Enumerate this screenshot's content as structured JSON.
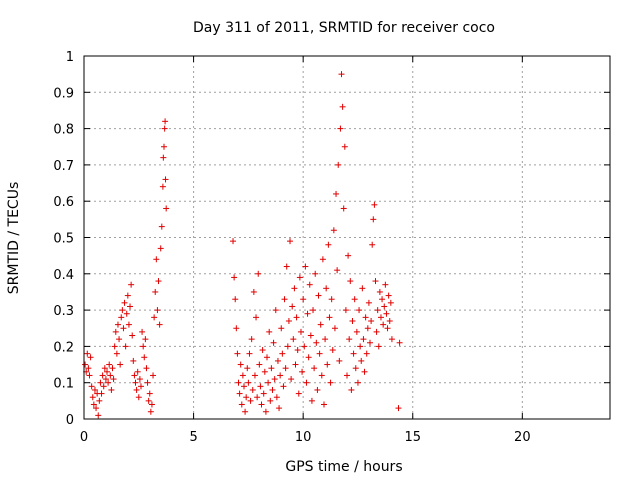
{
  "chart_data": {
    "type": "scatter",
    "title": "Day 311 of 2011, SRMTID for receiver coco",
    "xlabel": "GPS time / hours",
    "ylabel": "SRMTID / TECUs",
    "xlim": [
      0,
      24
    ],
    "ylim": [
      0,
      1
    ],
    "xticks": [
      0,
      5,
      10,
      15,
      20
    ],
    "yticks": [
      0,
      0.1,
      0.2,
      0.3,
      0.4,
      0.5,
      0.6,
      0.7,
      0.8,
      0.9,
      1
    ],
    "ytick_labels": [
      "0",
      "0.1",
      "0.2",
      "0.3",
      "0.4",
      "0.5",
      "0.6",
      "0.7",
      "0.8",
      "0.9",
      "1"
    ],
    "grid": true,
    "legend": "none",
    "marker": "plus",
    "color": "#e00000",
    "series": [
      {
        "points": [
          [
            0.05,
            0.15
          ],
          [
            0.1,
            0.13
          ],
          [
            0.15,
            0.18
          ],
          [
            0.2,
            0.14
          ],
          [
            0.25,
            0.12
          ],
          [
            0.3,
            0.17
          ],
          [
            0.35,
            0.09
          ],
          [
            0.4,
            0.06
          ],
          [
            0.45,
            0.04
          ],
          [
            0.5,
            0.08
          ],
          [
            0.55,
            0.03
          ],
          [
            0.6,
            0.07
          ],
          [
            0.65,
            0.01
          ],
          [
            0.7,
            0.05
          ],
          [
            0.75,
            0.1
          ],
          [
            0.8,
            0.07
          ],
          [
            0.85,
            0.12
          ],
          [
            0.9,
            0.09
          ],
          [
            0.95,
            0.14
          ],
          [
            1.0,
            0.11
          ],
          [
            1.05,
            0.13
          ],
          [
            1.1,
            0.1
          ],
          [
            1.15,
            0.15
          ],
          [
            1.2,
            0.12
          ],
          [
            1.25,
            0.08
          ],
          [
            1.3,
            0.14
          ],
          [
            1.35,
            0.11
          ],
          [
            1.4,
            0.2
          ],
          [
            1.45,
            0.24
          ],
          [
            1.5,
            0.18
          ],
          [
            1.55,
            0.26
          ],
          [
            1.6,
            0.22
          ],
          [
            1.65,
            0.15
          ],
          [
            1.7,
            0.28
          ],
          [
            1.75,
            0.3
          ],
          [
            1.8,
            0.25
          ],
          [
            1.85,
            0.32
          ],
          [
            1.9,
            0.2
          ],
          [
            1.95,
            0.29
          ],
          [
            2.0,
            0.34
          ],
          [
            2.05,
            0.26
          ],
          [
            2.1,
            0.31
          ],
          [
            2.15,
            0.37
          ],
          [
            2.2,
            0.23
          ],
          [
            2.25,
            0.16
          ],
          [
            2.3,
            0.12
          ],
          [
            2.35,
            0.1
          ],
          [
            2.4,
            0.08
          ],
          [
            2.45,
            0.13
          ],
          [
            2.5,
            0.06
          ],
          [
            2.55,
            0.11
          ],
          [
            2.6,
            0.09
          ],
          [
            2.65,
            0.24
          ],
          [
            2.7,
            0.2
          ],
          [
            2.75,
            0.17
          ],
          [
            2.8,
            0.22
          ],
          [
            2.85,
            0.14
          ],
          [
            2.9,
            0.1
          ],
          [
            2.95,
            0.05
          ],
          [
            3.0,
            0.07
          ],
          [
            3.05,
            0.02
          ],
          [
            3.1,
            0.04
          ],
          [
            3.15,
            0.12
          ],
          [
            3.2,
            0.28
          ],
          [
            3.25,
            0.35
          ],
          [
            3.3,
            0.44
          ],
          [
            3.35,
            0.3
          ],
          [
            3.4,
            0.38
          ],
          [
            3.45,
            0.26
          ],
          [
            3.5,
            0.47
          ],
          [
            3.55,
            0.53
          ],
          [
            3.6,
            0.64
          ],
          [
            3.62,
            0.72
          ],
          [
            3.65,
            0.75
          ],
          [
            3.68,
            0.8
          ],
          [
            3.7,
            0.82
          ],
          [
            3.72,
            0.66
          ],
          [
            3.75,
            0.58
          ],
          [
            6.8,
            0.49
          ],
          [
            6.85,
            0.39
          ],
          [
            6.9,
            0.33
          ],
          [
            6.95,
            0.25
          ],
          [
            7.0,
            0.18
          ],
          [
            7.05,
            0.1
          ],
          [
            7.1,
            0.07
          ],
          [
            7.15,
            0.15
          ],
          [
            7.2,
            0.04
          ],
          [
            7.25,
            0.12
          ],
          [
            7.3,
            0.09
          ],
          [
            7.35,
            0.02
          ],
          [
            7.4,
            0.06
          ],
          [
            7.45,
            0.14
          ],
          [
            7.5,
            0.1
          ],
          [
            7.55,
            0.18
          ],
          [
            7.6,
            0.05
          ],
          [
            7.65,
            0.22
          ],
          [
            7.7,
            0.08
          ],
          [
            7.75,
            0.35
          ],
          [
            7.8,
            0.12
          ],
          [
            7.85,
            0.28
          ],
          [
            7.9,
            0.06
          ],
          [
            7.95,
            0.4
          ],
          [
            8.0,
            0.15
          ],
          [
            8.05,
            0.09
          ],
          [
            8.1,
            0.04
          ],
          [
            8.15,
            0.19
          ],
          [
            8.2,
            0.07
          ],
          [
            8.25,
            0.13
          ],
          [
            8.3,
            0.02
          ],
          [
            8.35,
            0.17
          ],
          [
            8.4,
            0.1
          ],
          [
            8.45,
            0.24
          ],
          [
            8.5,
            0.05
          ],
          [
            8.55,
            0.14
          ],
          [
            8.6,
            0.08
          ],
          [
            8.65,
            0.21
          ],
          [
            8.7,
            0.11
          ],
          [
            8.75,
            0.3
          ],
          [
            8.8,
            0.06
          ],
          [
            8.85,
            0.16
          ],
          [
            8.9,
            0.03
          ],
          [
            8.95,
            0.12
          ],
          [
            9.0,
            0.25
          ],
          [
            9.05,
            0.18
          ],
          [
            9.1,
            0.09
          ],
          [
            9.15,
            0.33
          ],
          [
            9.2,
            0.14
          ],
          [
            9.25,
            0.42
          ],
          [
            9.3,
            0.2
          ],
          [
            9.35,
            0.27
          ],
          [
            9.4,
            0.49
          ],
          [
            9.45,
            0.11
          ],
          [
            9.5,
            0.31
          ],
          [
            9.55,
            0.22
          ],
          [
            9.6,
            0.36
          ],
          [
            9.65,
            0.15
          ],
          [
            9.7,
            0.28
          ],
          [
            9.75,
            0.19
          ],
          [
            9.8,
            0.07
          ],
          [
            9.85,
            0.39
          ],
          [
            9.9,
            0.24
          ],
          [
            9.95,
            0.13
          ],
          [
            10.0,
            0.33
          ],
          [
            10.05,
            0.2
          ],
          [
            10.1,
            0.42
          ],
          [
            10.15,
            0.1
          ],
          [
            10.2,
            0.29
          ],
          [
            10.25,
            0.17
          ],
          [
            10.3,
            0.37
          ],
          [
            10.35,
            0.23
          ],
          [
            10.4,
            0.05
          ],
          [
            10.45,
            0.3
          ],
          [
            10.5,
            0.14
          ],
          [
            10.55,
            0.4
          ],
          [
            10.6,
            0.21
          ],
          [
            10.65,
            0.08
          ],
          [
            10.7,
            0.34
          ],
          [
            10.75,
            0.18
          ],
          [
            10.8,
            0.26
          ],
          [
            10.85,
            0.12
          ],
          [
            10.9,
            0.44
          ],
          [
            10.95,
            0.04
          ],
          [
            11.0,
            0.22
          ],
          [
            11.05,
            0.36
          ],
          [
            11.1,
            0.15
          ],
          [
            11.15,
            0.48
          ],
          [
            11.2,
            0.28
          ],
          [
            11.25,
            0.1
          ],
          [
            11.3,
            0.33
          ],
          [
            11.35,
            0.19
          ],
          [
            11.4,
            0.52
          ],
          [
            11.45,
            0.25
          ],
          [
            11.5,
            0.62
          ],
          [
            11.55,
            0.41
          ],
          [
            11.6,
            0.7
          ],
          [
            11.65,
            0.16
          ],
          [
            11.7,
            0.8
          ],
          [
            11.75,
            0.95
          ],
          [
            11.8,
            0.86
          ],
          [
            11.85,
            0.58
          ],
          [
            11.9,
            0.75
          ],
          [
            11.95,
            0.3
          ],
          [
            12.0,
            0.12
          ],
          [
            12.05,
            0.45
          ],
          [
            12.1,
            0.22
          ],
          [
            12.15,
            0.38
          ],
          [
            12.2,
            0.08
          ],
          [
            12.25,
            0.27
          ],
          [
            12.3,
            0.18
          ],
          [
            12.35,
            0.33
          ],
          [
            12.4,
            0.14
          ],
          [
            12.45,
            0.24
          ],
          [
            12.5,
            0.1
          ],
          [
            12.55,
            0.3
          ],
          [
            12.6,
            0.2
          ],
          [
            12.65,
            0.16
          ],
          [
            12.7,
            0.36
          ],
          [
            12.75,
            0.22
          ],
          [
            12.8,
            0.13
          ],
          [
            12.85,
            0.28
          ],
          [
            12.9,
            0.18
          ],
          [
            12.95,
            0.25
          ],
          [
            13.0,
            0.32
          ],
          [
            13.05,
            0.21
          ],
          [
            13.1,
            0.27
          ],
          [
            13.15,
            0.48
          ],
          [
            13.2,
            0.55
          ],
          [
            13.25,
            0.59
          ],
          [
            13.3,
            0.38
          ],
          [
            13.35,
            0.24
          ],
          [
            13.4,
            0.3
          ],
          [
            13.45,
            0.2
          ],
          [
            13.5,
            0.35
          ],
          [
            13.55,
            0.28
          ],
          [
            13.6,
            0.33
          ],
          [
            13.65,
            0.26
          ],
          [
            13.7,
            0.31
          ],
          [
            13.75,
            0.37
          ],
          [
            13.8,
            0.29
          ],
          [
            13.85,
            0.25
          ],
          [
            13.9,
            0.34
          ],
          [
            13.95,
            0.27
          ],
          [
            14.0,
            0.32
          ],
          [
            14.05,
            0.22
          ],
          [
            14.4,
            0.21
          ],
          [
            14.35,
            0.03
          ]
        ]
      }
    ]
  }
}
